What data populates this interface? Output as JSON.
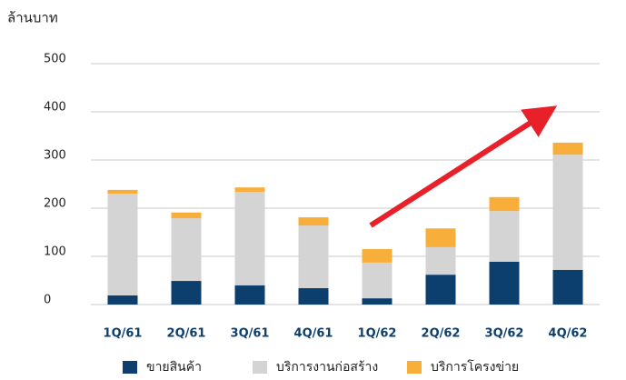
{
  "chart_data": {
    "type": "stacked_bar",
    "y_axis_label": "ล้านบาท",
    "categories": [
      "1Q/61",
      "2Q/61",
      "3Q/61",
      "4Q/61",
      "1Q/62",
      "2Q/62",
      "3Q/62",
      "4Q/62"
    ],
    "series": [
      {
        "name": "ขายสินค้า",
        "color": "#0c3f6e",
        "values": [
          19,
          49,
          40,
          34,
          13,
          62,
          89,
          72
        ]
      },
      {
        "name": "บริการงานก่อสร้าง",
        "color": "#d4d4d4",
        "values": [
          211,
          130,
          194,
          130,
          74,
          57,
          105,
          239
        ]
      },
      {
        "name": "บริการโครงข่าย",
        "color": "#f7ae3b",
        "values": [
          8,
          12,
          9,
          17,
          28,
          39,
          29,
          25
        ]
      }
    ],
    "ylim": [
      0,
      500
    ],
    "yticks": [
      0,
      100,
      200,
      300,
      400,
      500
    ],
    "grid": true,
    "legend": "bottom"
  }
}
